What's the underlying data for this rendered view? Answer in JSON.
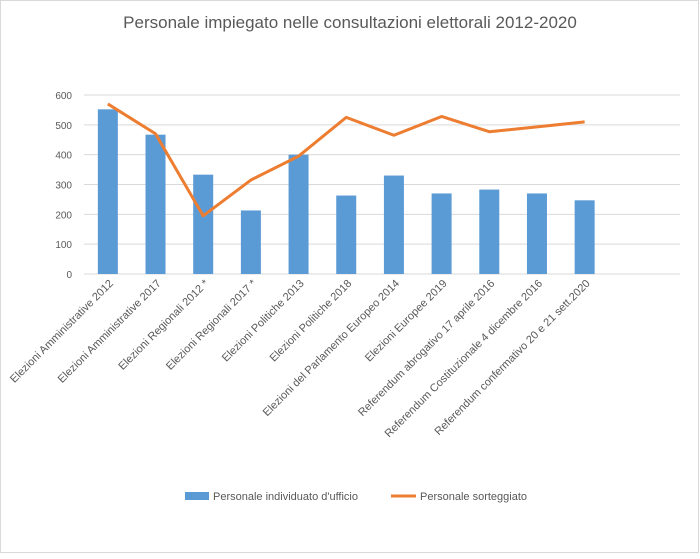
{
  "chart_data": {
    "type": "bar+line",
    "title": "Personale impiegato nelle consultazioni elettorali 2012-2020",
    "xlabel": "",
    "ylabel": "",
    "ylim": [
      0,
      600
    ],
    "yticks": [
      0,
      100,
      200,
      300,
      400,
      500,
      600
    ],
    "grid": true,
    "legend_position": "bottom",
    "categories": [
      "Elezioni Amministrative 2012",
      "Elezioni Amministrative 2017",
      "Elezioni Regionali 2012 *",
      "Elezioni Regionali 2017 *",
      "Elezioni Politiche 2013",
      "Elezioni Politiche 2018",
      "Elezioni del Parlamento Europeo 2014",
      "Elezioni Europee 2019",
      "Referendum abrogativo 17 aprile 2016",
      "Referendum Costituzionale 4 dicembre 2016",
      "Referendum confermativo 20 e 21 sett.2020"
    ],
    "series": [
      {
        "name": "Personale individuato d'ufficio",
        "type": "bar",
        "color": "#5B9BD5",
        "values": [
          552,
          467,
          333,
          213,
          400,
          263,
          330,
          270,
          283,
          270,
          247
        ]
      },
      {
        "name": "Personale sorteggiato",
        "type": "line",
        "color": "#ED7D31",
        "values": [
          570,
          470,
          195,
          315,
          395,
          525,
          465,
          528,
          477,
          493,
          510
        ]
      }
    ]
  }
}
